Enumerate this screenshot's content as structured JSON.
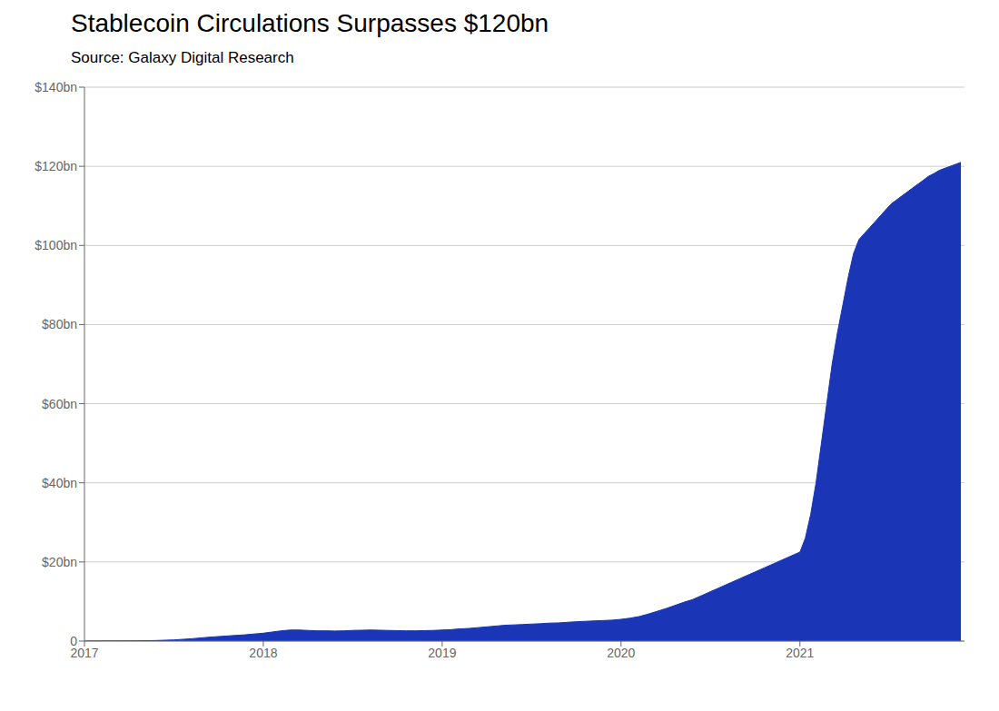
{
  "chart_data": {
    "type": "area",
    "title": "Stablecoin Circulations Surpasses $120bn",
    "subtitle": "Source: Galaxy Digital Research",
    "color": "#1a35b5",
    "grid": true,
    "xlim": [
      2017.0,
      2021.92
    ],
    "xticks": [
      2017,
      2018,
      2019,
      2020,
      2021
    ],
    "ylim": [
      0,
      140
    ],
    "yticks": [
      0,
      {
        "value": 20,
        "label": "$20bn"
      },
      {
        "value": 40,
        "label": "$40bn"
      },
      {
        "value": 60,
        "label": "$60bn"
      },
      {
        "value": 80,
        "label": "$80bn"
      },
      {
        "value": 100,
        "label": "$100bn"
      },
      {
        "value": 120,
        "label": "$120bn"
      },
      {
        "value": 140,
        "label": "$140bn"
      }
    ],
    "x": [
      2017.0,
      2017.1,
      2017.2,
      2017.3,
      2017.4,
      2017.5,
      2017.6,
      2017.7,
      2017.8,
      2017.9,
      2018.0,
      2018.05,
      2018.1,
      2018.15,
      2018.2,
      2018.25,
      2018.3,
      2018.35,
      2018.4,
      2018.45,
      2018.5,
      2018.55,
      2018.6,
      2018.65,
      2018.7,
      2018.75,
      2018.8,
      2018.85,
      2018.9,
      2018.95,
      2019.0,
      2019.05,
      2019.1,
      2019.15,
      2019.2,
      2019.25,
      2019.3,
      2019.35,
      2019.4,
      2019.45,
      2019.5,
      2019.55,
      2019.6,
      2019.65,
      2019.7,
      2019.75,
      2019.8,
      2019.85,
      2019.9,
      2019.95,
      2020.0,
      2020.05,
      2020.1,
      2020.15,
      2020.2,
      2020.25,
      2020.3,
      2020.35,
      2020.4,
      2020.45,
      2020.5,
      2020.55,
      2020.6,
      2020.65,
      2020.7,
      2020.75,
      2020.8,
      2020.85,
      2020.9,
      2020.95,
      2021.0,
      2021.03,
      2021.06,
      2021.09,
      2021.12,
      2021.15,
      2021.18,
      2021.21,
      2021.24,
      2021.27,
      2021.3,
      2021.33,
      2021.36,
      2021.39,
      2021.42,
      2021.45,
      2021.48,
      2021.51,
      2021.54,
      2021.57,
      2021.6,
      2021.63,
      2021.66,
      2021.69,
      2021.72,
      2021.75,
      2021.78,
      2021.81,
      2021.84,
      2021.87,
      2021.9
    ],
    "values": [
      0.02,
      0.03,
      0.05,
      0.08,
      0.15,
      0.3,
      0.6,
      1.0,
      1.3,
      1.6,
      2.0,
      2.3,
      2.6,
      2.8,
      2.8,
      2.7,
      2.6,
      2.6,
      2.55,
      2.6,
      2.7,
      2.75,
      2.8,
      2.75,
      2.7,
      2.65,
      2.6,
      2.6,
      2.65,
      2.7,
      2.8,
      2.9,
      3.1,
      3.2,
      3.4,
      3.6,
      3.8,
      4.0,
      4.1,
      4.2,
      4.3,
      4.4,
      4.55,
      4.6,
      4.75,
      4.9,
      5.0,
      5.1,
      5.2,
      5.3,
      5.5,
      5.8,
      6.2,
      6.8,
      7.5,
      8.2,
      9.0,
      9.8,
      10.5,
      11.5,
      12.5,
      13.5,
      14.5,
      15.5,
      16.5,
      17.5,
      18.5,
      19.5,
      20.5,
      21.5,
      22.5,
      26.0,
      32.0,
      40.0,
      50.0,
      60.0,
      70.0,
      78.0,
      85.0,
      92.0,
      98.0,
      101.5,
      103.0,
      104.5,
      106.0,
      107.5,
      109.0,
      110.5,
      111.5,
      112.5,
      113.5,
      114.5,
      115.5,
      116.5,
      117.5,
      118.2,
      119.0,
      119.5,
      120.0,
      120.5,
      121.0
    ]
  }
}
